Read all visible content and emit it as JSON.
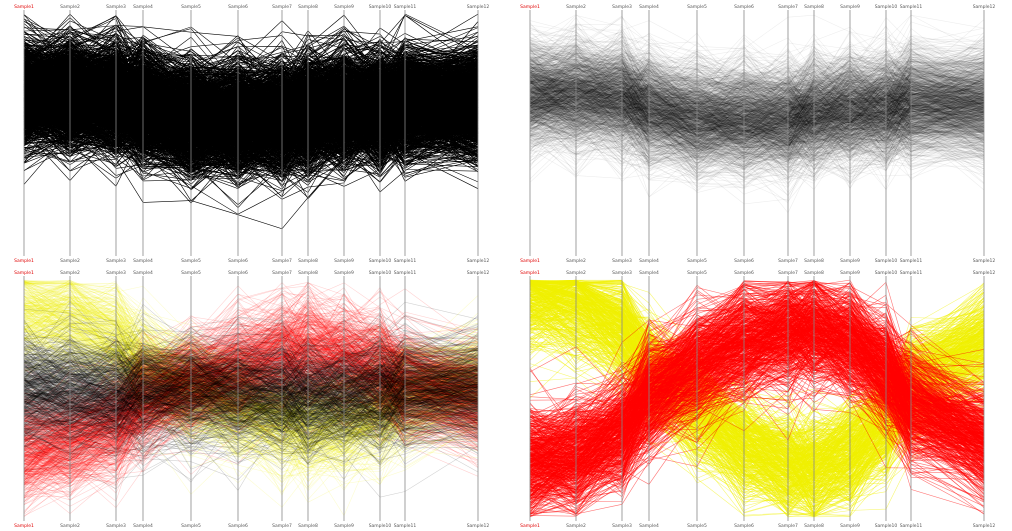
{
  "chart_data": [
    {
      "type": "parallel-coordinates",
      "axes": [
        "Sample1",
        "Sample2",
        "Sample3",
        "Sample4",
        "Sample5",
        "Sample6",
        "Sample7",
        "Sample8",
        "Sample9",
        "Sample10",
        "Sample11",
        "Sample12"
      ],
      "ylim": [
        -14.1,
        12.6
      ],
      "colors": {
        "lines": "#000000"
      },
      "opacity": 1.0,
      "line_count": 1400,
      "groups": [
        {
          "color": "#000000",
          "fraction": 1.0,
          "profile": [
            3.5,
            3.5,
            3.2,
            2.1,
            0.9,
            0.8,
            0.8,
            1.4,
            1.9,
            2.0,
            2.6,
            2.5
          ]
        }
      ]
    },
    {
      "type": "parallel-coordinates",
      "axes": [
        "Sample1",
        "Sample2",
        "Sample3",
        "Sample4",
        "Sample5",
        "Sample6",
        "Sample7",
        "Sample8",
        "Sample9",
        "Sample10",
        "Sample11",
        "Sample12"
      ],
      "ylim": [
        -14.1,
        12.6
      ],
      "colors": {
        "lines": "#000000"
      },
      "opacity": 0.07,
      "line_count": 1400,
      "groups": [
        {
          "color": "#000000",
          "fraction": 1.0,
          "profile": [
            3.5,
            3.5,
            3.2,
            2.1,
            0.9,
            0.8,
            0.8,
            1.4,
            1.9,
            2.0,
            2.6,
            2.5
          ]
        }
      ]
    },
    {
      "type": "parallel-coordinates",
      "axes": [
        "Sample1",
        "Sample2",
        "Sample3",
        "Sample4",
        "Sample5",
        "Sample6",
        "Sample7",
        "Sample8",
        "Sample9",
        "Sample10",
        "Sample11",
        "Sample12"
      ],
      "ylim": [
        -14.1,
        12.6
      ],
      "colors": {
        "high": "#f0f000",
        "low": "#ff0000",
        "mid": "#000000"
      },
      "opacity": 0.18,
      "line_count": 1400,
      "groups": [
        {
          "color": "#f0f000",
          "fraction": 0.25,
          "profile": [
            8.8,
            8.0,
            6.1,
            3.2,
            0.4,
            -1.9,
            -3.6,
            -4.1,
            -3.5,
            -2.2,
            -0.5,
            1.3
          ]
        },
        {
          "color": "#ff0000",
          "fraction": 0.35,
          "profile": [
            -6.3,
            -5.6,
            -3.8,
            -1.2,
            1.2,
            3.1,
            4.5,
            4.9,
            4.3,
            3.2,
            1.3,
            -0.9
          ]
        },
        {
          "color": "#000000",
          "fraction": 0.4,
          "profile": [
            0.2,
            0.1,
            0.0,
            0.1,
            0.2,
            0.0,
            -0.4,
            -0.7,
            -0.5,
            0.0,
            0.3,
            0.4
          ]
        }
      ]
    },
    {
      "type": "parallel-coordinates",
      "axes": [
        "Sample1",
        "Sample2",
        "Sample3",
        "Sample4",
        "Sample5",
        "Sample6",
        "Sample7",
        "Sample8",
        "Sample9",
        "Sample10",
        "Sample11",
        "Sample12"
      ],
      "ylim": [
        -14.1,
        12.6
      ],
      "colors": {
        "high": "#f0f000",
        "low": "#ff0000"
      },
      "opacity": 0.55,
      "line_count": 1000,
      "groups": [
        {
          "color": "#f0f000",
          "fraction": 0.45,
          "profile": [
            11.0,
            10.0,
            7.2,
            2.6,
            -2.0,
            -6.0,
            -8.3,
            -8.6,
            -6.9,
            -3.4,
            1.0,
            5.2
          ]
        },
        {
          "color": "#ff0000",
          "fraction": 0.55,
          "profile": [
            -7.8,
            -7.0,
            -4.4,
            -0.4,
            3.1,
            5.5,
            6.9,
            6.9,
            5.6,
            2.6,
            -1.5,
            -5.5
          ]
        }
      ]
    }
  ]
}
